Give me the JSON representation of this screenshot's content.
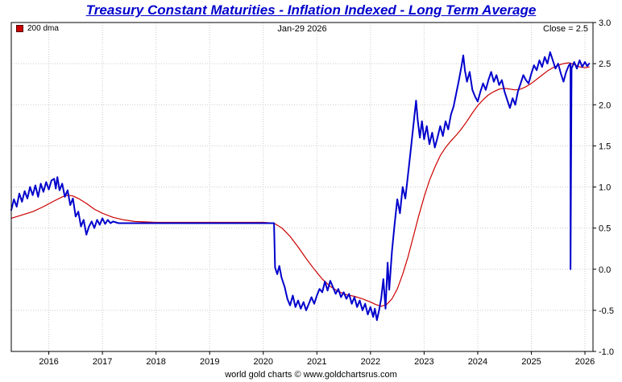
{
  "title": "Treasury Constant Maturities - Inflation Indexed - Long Term Average",
  "chart_header": {
    "date": "Jan-29 2026",
    "close": "Close = 2.5"
  },
  "footer": "world gold charts © www.goldchartsrus.com",
  "colors": {
    "title": "#0000cc",
    "main_line": "#0000cc",
    "dma_line": "#cc0000",
    "grid": "#c9c9c9",
    "axis": "#000000",
    "background": "#ffffff"
  },
  "chart_data": {
    "type": "line",
    "title": "Treasury Constant Maturities - Inflation Indexed - Long Term Average",
    "xlabel": "",
    "ylabel": "",
    "xlim": [
      2015.3,
      2026.15
    ],
    "ylim": [
      -1.0,
      3.0
    ],
    "grid": true,
    "legend_position": "top-left",
    "close_value": 2.5,
    "y_ticks": [
      {
        "value": 3.0,
        "label": "3.0"
      },
      {
        "value": 2.5,
        "label": "2.5"
      },
      {
        "value": 2.0,
        "label": "2.0"
      },
      {
        "value": 1.5,
        "label": "1.5"
      },
      {
        "value": 1.0,
        "label": "1.0"
      },
      {
        "value": 0.5,
        "label": "0.5"
      },
      {
        "value": 0.0,
        "label": "0.0"
      },
      {
        "value": -0.5,
        "label": "-0.5"
      },
      {
        "value": -1.0,
        "label": "-1.0"
      }
    ],
    "x_ticks": [
      {
        "value": 2016,
        "label": "2016"
      },
      {
        "value": 2017,
        "label": "2017"
      },
      {
        "value": 2018,
        "label": "2018"
      },
      {
        "value": 2019,
        "label": "2019"
      },
      {
        "value": 2020,
        "label": "2020"
      },
      {
        "value": 2021,
        "label": "2021"
      },
      {
        "value": 2022,
        "label": "2022"
      },
      {
        "value": 2023,
        "label": "2023"
      },
      {
        "value": 2024,
        "label": "2024"
      },
      {
        "value": 2025,
        "label": "2025"
      },
      {
        "value": 2026,
        "label": "2026"
      }
    ],
    "series": [
      {
        "name": "200 dma",
        "color": "#cc0000",
        "width": 1.2,
        "points": [
          [
            2015.3,
            0.62
          ],
          [
            2015.5,
            0.66
          ],
          [
            2015.7,
            0.7
          ],
          [
            2015.9,
            0.76
          ],
          [
            2016.1,
            0.83
          ],
          [
            2016.25,
            0.88
          ],
          [
            2016.35,
            0.9
          ],
          [
            2016.45,
            0.89
          ],
          [
            2016.55,
            0.86
          ],
          [
            2016.7,
            0.8
          ],
          [
            2016.85,
            0.73
          ],
          [
            2017.0,
            0.68
          ],
          [
            2017.2,
            0.63
          ],
          [
            2017.4,
            0.6
          ],
          [
            2017.6,
            0.58
          ],
          [
            2018.0,
            0.57
          ],
          [
            2018.5,
            0.57
          ],
          [
            2019.0,
            0.57
          ],
          [
            2019.5,
            0.57
          ],
          [
            2020.0,
            0.57
          ],
          [
            2020.2,
            0.56
          ],
          [
            2020.35,
            0.5
          ],
          [
            2020.5,
            0.4
          ],
          [
            2020.65,
            0.27
          ],
          [
            2020.8,
            0.13
          ],
          [
            2020.95,
            0.0
          ],
          [
            2021.1,
            -0.12
          ],
          [
            2021.25,
            -0.21
          ],
          [
            2021.4,
            -0.27
          ],
          [
            2021.55,
            -0.31
          ],
          [
            2021.7,
            -0.33
          ],
          [
            2021.85,
            -0.36
          ],
          [
            2022.0,
            -0.4
          ],
          [
            2022.1,
            -0.43
          ],
          [
            2022.2,
            -0.45
          ],
          [
            2022.3,
            -0.43
          ],
          [
            2022.4,
            -0.36
          ],
          [
            2022.5,
            -0.24
          ],
          [
            2022.6,
            -0.06
          ],
          [
            2022.7,
            0.15
          ],
          [
            2022.8,
            0.4
          ],
          [
            2022.9,
            0.65
          ],
          [
            2023.0,
            0.88
          ],
          [
            2023.1,
            1.08
          ],
          [
            2023.2,
            1.24
          ],
          [
            2023.3,
            1.38
          ],
          [
            2023.4,
            1.48
          ],
          [
            2023.5,
            1.56
          ],
          [
            2023.6,
            1.63
          ],
          [
            2023.7,
            1.71
          ],
          [
            2023.8,
            1.8
          ],
          [
            2023.9,
            1.9
          ],
          [
            2024.0,
            1.99
          ],
          [
            2024.1,
            2.06
          ],
          [
            2024.2,
            2.12
          ],
          [
            2024.3,
            2.16
          ],
          [
            2024.4,
            2.19
          ],
          [
            2024.5,
            2.2
          ],
          [
            2024.6,
            2.19
          ],
          [
            2024.7,
            2.18
          ],
          [
            2024.8,
            2.19
          ],
          [
            2024.9,
            2.22
          ],
          [
            2025.0,
            2.26
          ],
          [
            2025.1,
            2.31
          ],
          [
            2025.2,
            2.36
          ],
          [
            2025.3,
            2.41
          ],
          [
            2025.4,
            2.45
          ],
          [
            2025.5,
            2.48
          ],
          [
            2025.6,
            2.5
          ],
          [
            2025.7,
            2.51
          ],
          [
            2025.8,
            2.49
          ],
          [
            2025.9,
            2.46
          ],
          [
            2026.0,
            2.45
          ],
          [
            2026.08,
            2.46
          ]
        ]
      },
      {
        "name": "Long Term Average",
        "color": "#0000cc",
        "width": 2,
        "points": [
          [
            2015.3,
            0.72
          ],
          [
            2015.35,
            0.85
          ],
          [
            2015.4,
            0.76
          ],
          [
            2015.45,
            0.92
          ],
          [
            2015.5,
            0.82
          ],
          [
            2015.55,
            0.95
          ],
          [
            2015.6,
            0.86
          ],
          [
            2015.65,
            1.0
          ],
          [
            2015.7,
            0.9
          ],
          [
            2015.75,
            1.02
          ],
          [
            2015.8,
            0.88
          ],
          [
            2015.85,
            1.04
          ],
          [
            2015.9,
            0.94
          ],
          [
            2015.95,
            1.06
          ],
          [
            2016.0,
            0.97
          ],
          [
            2016.05,
            1.08
          ],
          [
            2016.1,
            1.1
          ],
          [
            2016.13,
            0.98
          ],
          [
            2016.16,
            1.12
          ],
          [
            2016.2,
            0.96
          ],
          [
            2016.25,
            1.04
          ],
          [
            2016.3,
            0.88
          ],
          [
            2016.35,
            0.96
          ],
          [
            2016.4,
            0.78
          ],
          [
            2016.45,
            0.86
          ],
          [
            2016.5,
            0.64
          ],
          [
            2016.55,
            0.7
          ],
          [
            2016.6,
            0.52
          ],
          [
            2016.65,
            0.6
          ],
          [
            2016.7,
            0.42
          ],
          [
            2016.75,
            0.52
          ],
          [
            2016.8,
            0.58
          ],
          [
            2016.85,
            0.5
          ],
          [
            2016.9,
            0.6
          ],
          [
            2016.95,
            0.54
          ],
          [
            2017.0,
            0.62
          ],
          [
            2017.05,
            0.55
          ],
          [
            2017.1,
            0.6
          ],
          [
            2017.15,
            0.56
          ],
          [
            2017.2,
            0.58
          ],
          [
            2017.3,
            0.56
          ],
          [
            2020.2,
            0.56
          ],
          [
            2020.22,
            0.02
          ],
          [
            2020.26,
            -0.06
          ],
          [
            2020.3,
            0.04
          ],
          [
            2020.34,
            -0.1
          ],
          [
            2020.4,
            -0.22
          ],
          [
            2020.45,
            -0.36
          ],
          [
            2020.5,
            -0.44
          ],
          [
            2020.55,
            -0.32
          ],
          [
            2020.6,
            -0.46
          ],
          [
            2020.65,
            -0.38
          ],
          [
            2020.7,
            -0.48
          ],
          [
            2020.75,
            -0.4
          ],
          [
            2020.8,
            -0.5
          ],
          [
            2020.85,
            -0.42
          ],
          [
            2020.9,
            -0.34
          ],
          [
            2020.95,
            -0.42
          ],
          [
            2021.0,
            -0.32
          ],
          [
            2021.05,
            -0.24
          ],
          [
            2021.1,
            -0.28
          ],
          [
            2021.15,
            -0.15
          ],
          [
            2021.2,
            -0.26
          ],
          [
            2021.25,
            -0.14
          ],
          [
            2021.3,
            -0.22
          ],
          [
            2021.35,
            -0.3
          ],
          [
            2021.4,
            -0.24
          ],
          [
            2021.45,
            -0.34
          ],
          [
            2021.5,
            -0.28
          ],
          [
            2021.55,
            -0.36
          ],
          [
            2021.6,
            -0.3
          ],
          [
            2021.65,
            -0.42
          ],
          [
            2021.7,
            -0.34
          ],
          [
            2021.75,
            -0.46
          ],
          [
            2021.8,
            -0.38
          ],
          [
            2021.85,
            -0.5
          ],
          [
            2021.9,
            -0.42
          ],
          [
            2021.95,
            -0.55
          ],
          [
            2022.0,
            -0.46
          ],
          [
            2022.05,
            -0.58
          ],
          [
            2022.08,
            -0.48
          ],
          [
            2022.12,
            -0.62
          ],
          [
            2022.16,
            -0.5
          ],
          [
            2022.2,
            -0.35
          ],
          [
            2022.24,
            -0.12
          ],
          [
            2022.28,
            -0.48
          ],
          [
            2022.32,
            0.08
          ],
          [
            2022.35,
            -0.25
          ],
          [
            2022.4,
            0.22
          ],
          [
            2022.45,
            0.55
          ],
          [
            2022.5,
            0.85
          ],
          [
            2022.55,
            0.68
          ],
          [
            2022.6,
            1.0
          ],
          [
            2022.65,
            0.86
          ],
          [
            2022.7,
            1.15
          ],
          [
            2022.75,
            1.45
          ],
          [
            2022.8,
            1.75
          ],
          [
            2022.85,
            2.05
          ],
          [
            2022.88,
            1.82
          ],
          [
            2022.92,
            1.6
          ],
          [
            2022.96,
            1.8
          ],
          [
            2023.0,
            1.58
          ],
          [
            2023.05,
            1.74
          ],
          [
            2023.1,
            1.52
          ],
          [
            2023.15,
            1.66
          ],
          [
            2023.2,
            1.48
          ],
          [
            2023.25,
            1.6
          ],
          [
            2023.3,
            1.74
          ],
          [
            2023.35,
            1.62
          ],
          [
            2023.4,
            1.8
          ],
          [
            2023.45,
            1.7
          ],
          [
            2023.5,
            1.88
          ],
          [
            2023.55,
            1.98
          ],
          [
            2023.6,
            2.14
          ],
          [
            2023.65,
            2.3
          ],
          [
            2023.7,
            2.48
          ],
          [
            2023.73,
            2.6
          ],
          [
            2023.76,
            2.42
          ],
          [
            2023.8,
            2.28
          ],
          [
            2023.85,
            2.4
          ],
          [
            2023.9,
            2.18
          ],
          [
            2023.95,
            2.1
          ],
          [
            2024.0,
            2.04
          ],
          [
            2024.05,
            2.16
          ],
          [
            2024.1,
            2.26
          ],
          [
            2024.15,
            2.18
          ],
          [
            2024.2,
            2.3
          ],
          [
            2024.25,
            2.4
          ],
          [
            2024.3,
            2.28
          ],
          [
            2024.35,
            2.36
          ],
          [
            2024.4,
            2.24
          ],
          [
            2024.45,
            2.3
          ],
          [
            2024.5,
            2.16
          ],
          [
            2024.55,
            2.06
          ],
          [
            2024.6,
            1.96
          ],
          [
            2024.65,
            2.08
          ],
          [
            2024.7,
            2.0
          ],
          [
            2024.75,
            2.16
          ],
          [
            2024.8,
            2.26
          ],
          [
            2024.85,
            2.36
          ],
          [
            2024.9,
            2.3
          ],
          [
            2024.95,
            2.26
          ],
          [
            2025.0,
            2.38
          ],
          [
            2025.05,
            2.48
          ],
          [
            2025.1,
            2.42
          ],
          [
            2025.15,
            2.54
          ],
          [
            2025.2,
            2.46
          ],
          [
            2025.25,
            2.58
          ],
          [
            2025.3,
            2.5
          ],
          [
            2025.35,
            2.64
          ],
          [
            2025.4,
            2.54
          ],
          [
            2025.45,
            2.44
          ],
          [
            2025.5,
            2.5
          ],
          [
            2025.55,
            2.38
          ],
          [
            2025.6,
            2.28
          ],
          [
            2025.65,
            2.4
          ],
          [
            2025.7,
            2.48
          ],
          [
            2025.73,
            2.5
          ],
          [
            2025.73,
            0.0
          ],
          [
            2025.75,
            2.44
          ],
          [
            2025.8,
            2.52
          ],
          [
            2025.85,
            2.44
          ],
          [
            2025.9,
            2.54
          ],
          [
            2025.95,
            2.46
          ],
          [
            2026.0,
            2.52
          ],
          [
            2026.04,
            2.47
          ],
          [
            2026.08,
            2.5
          ]
        ]
      }
    ]
  }
}
